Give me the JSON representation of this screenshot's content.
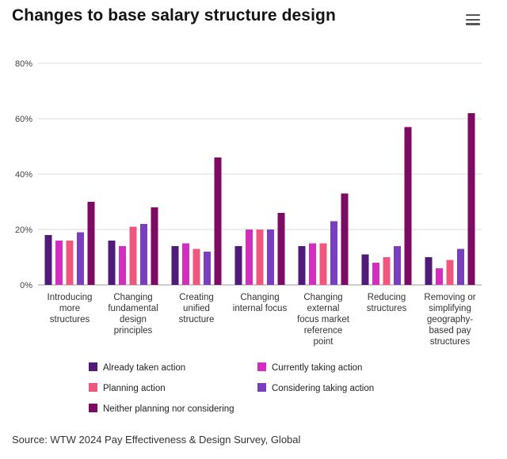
{
  "header": {
    "title": "Changes to base salary structure design",
    "menu_icon": "hamburger-menu-icon"
  },
  "footer": {
    "source": "Source: WTW 2024 Pay Effectiveness & Design Survey, Global"
  },
  "chart_data": {
    "type": "bar",
    "title": "Changes to base salary structure design",
    "xlabel": "",
    "ylabel": "",
    "ylim": [
      0,
      80
    ],
    "yticks": [
      0,
      20,
      40,
      60,
      80
    ],
    "ytick_labels": [
      "0%",
      "20%",
      "40%",
      "60%",
      "80%"
    ],
    "grid": true,
    "legend_position": "bottom",
    "categories": [
      [
        "Introducing",
        "more",
        "structures"
      ],
      [
        "Changing",
        "fundamental",
        "design",
        "principles"
      ],
      [
        "Creating",
        "unified",
        "structure"
      ],
      [
        "Changing",
        "internal focus"
      ],
      [
        "Changing",
        "external",
        "focus market",
        "reference",
        "point"
      ],
      [
        "Reducing",
        "structures"
      ],
      [
        "Removing or",
        "simplifying",
        "geography-",
        "based pay",
        "structures"
      ]
    ],
    "series": [
      {
        "name": "Already taken action",
        "color": "#4f1a78",
        "values": [
          18,
          16,
          14,
          14,
          14,
          11,
          10
        ]
      },
      {
        "name": "Currently taking action",
        "color": "#d22fc0",
        "values": [
          16,
          14,
          15,
          20,
          15,
          8,
          6
        ]
      },
      {
        "name": "Planning action",
        "color": "#f0577f",
        "values": [
          16,
          21,
          13,
          20,
          15,
          10,
          9
        ]
      },
      {
        "name": "Considering taking action",
        "color": "#7a3fbf",
        "values": [
          19,
          22,
          12,
          20,
          23,
          14,
          13
        ]
      },
      {
        "name": "Neither planning nor considering",
        "color": "#7d0a63",
        "values": [
          30,
          28,
          46,
          26,
          33,
          57,
          62
        ]
      }
    ]
  }
}
